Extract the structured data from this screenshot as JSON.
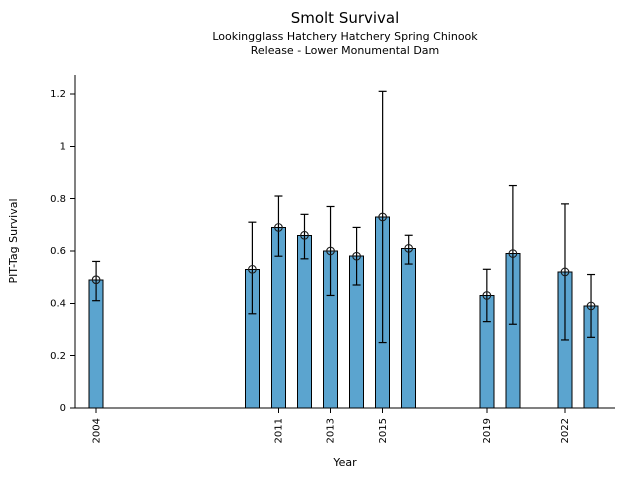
{
  "chart_data": {
    "type": "bar",
    "title": "Smolt Survival",
    "subtitle1": "Lookingglass Hatchery Hatchery Spring Chinook",
    "subtitle2": "Release - Lower Monumental Dam",
    "xlabel": "Year",
    "ylabel": "PIT-Tag Survival",
    "x": [
      2004,
      2010,
      2011,
      2012,
      2013,
      2014,
      2015,
      2016,
      2019,
      2020,
      2022,
      2023
    ],
    "values": [
      0.49,
      0.53,
      0.69,
      0.66,
      0.6,
      0.58,
      0.73,
      0.61,
      0.43,
      0.59,
      0.52,
      0.39
    ],
    "error_low": [
      0.41,
      0.36,
      0.58,
      0.57,
      0.43,
      0.47,
      0.25,
      0.55,
      0.33,
      0.32,
      0.26,
      0.27
    ],
    "error_high": [
      0.56,
      0.71,
      0.81,
      0.74,
      0.77,
      0.69,
      1.21,
      0.66,
      0.53,
      0.85,
      0.78,
      0.51
    ],
    "yticks": [
      0,
      0.2,
      0.4,
      0.6,
      0.8,
      1,
      1.2
    ],
    "ytick_labels": [
      "0",
      "0.2",
      "0.4",
      "0.6",
      "0.8",
      "1",
      "1.2"
    ],
    "xticks": [
      2004,
      2011,
      2013,
      2015,
      2019,
      2022
    ],
    "xlim": [
      2003.19,
      2023.92
    ],
    "ylim": [
      0,
      1.2724
    ],
    "grid": false,
    "legend": "none",
    "error_bars": true,
    "marker": "open-circle",
    "bar_color": "#5BA4CF",
    "bar_edge_color": "#000000",
    "error_bar_color": "#000000",
    "axis_color": "#000000",
    "bar_width_years": 0.54
  }
}
